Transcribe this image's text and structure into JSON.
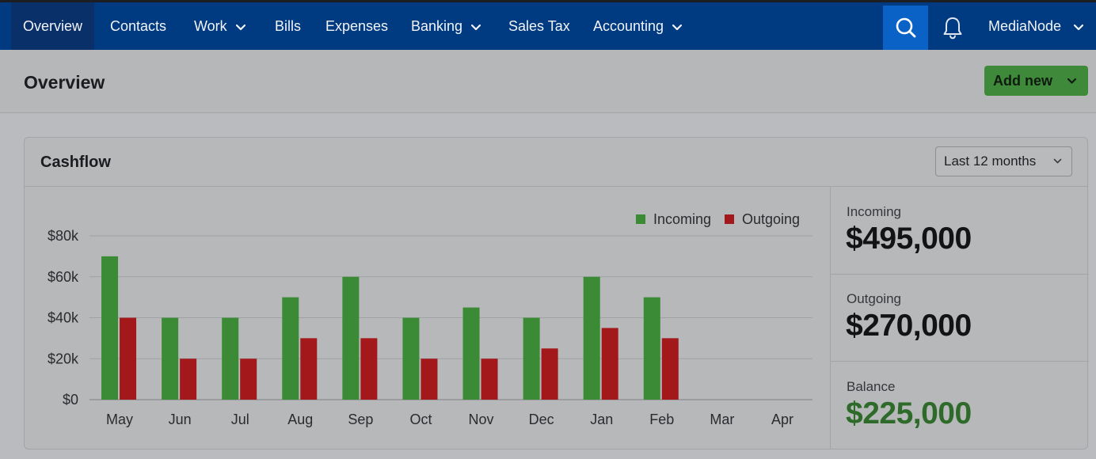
{
  "nav": {
    "items": [
      {
        "label": "Overview",
        "active": true,
        "dropdown": false
      },
      {
        "label": "Contacts",
        "active": false,
        "dropdown": false
      },
      {
        "label": "Work",
        "active": false,
        "dropdown": true
      },
      {
        "label": "Bills",
        "active": false,
        "dropdown": false
      },
      {
        "label": "Expenses",
        "active": false,
        "dropdown": false
      },
      {
        "label": "Banking",
        "active": false,
        "dropdown": true
      },
      {
        "label": "Sales Tax",
        "active": false,
        "dropdown": false
      },
      {
        "label": "Accounting",
        "active": false,
        "dropdown": true
      }
    ],
    "account_name": "MediaNode",
    "search_icon": "search-icon",
    "bell_icon": "bell-icon"
  },
  "page": {
    "title": "Overview",
    "add_button_label": "Add new"
  },
  "cashflow": {
    "title": "Cashflow",
    "period": "Last 12 months",
    "summary": {
      "incoming_label": "Incoming",
      "incoming_value": "$495,000",
      "outgoing_label": "Outgoing",
      "outgoing_value": "$270,000",
      "balance_label": "Balance",
      "balance_value": "$225,000"
    }
  },
  "colors": {
    "nav_bg": "#003a80",
    "incoming": "#3a8a36",
    "outgoing": "#a3181b",
    "balance": "#2e6b2a",
    "add_button": "#3f8a3a"
  },
  "chart_data": {
    "type": "bar",
    "categories": [
      "May",
      "Jun",
      "Jul",
      "Aug",
      "Sep",
      "Oct",
      "Nov",
      "Dec",
      "Jan",
      "Feb",
      "Mar",
      "Apr"
    ],
    "series": [
      {
        "name": "Incoming",
        "color": "#3a8a36",
        "values": [
          70000,
          40000,
          40000,
          50000,
          60000,
          40000,
          45000,
          40000,
          60000,
          50000,
          null,
          null
        ]
      },
      {
        "name": "Outgoing",
        "color": "#a3181b",
        "values": [
          40000,
          20000,
          20000,
          30000,
          30000,
          20000,
          20000,
          25000,
          35000,
          30000,
          null,
          null
        ]
      }
    ],
    "yticks": [
      "$0",
      "$20k",
      "$40k",
      "$60k",
      "$80k"
    ],
    "ytick_values": [
      0,
      20000,
      40000,
      60000,
      80000
    ],
    "ylim": [
      0,
      80000
    ],
    "grid": true,
    "legend": "top-right"
  }
}
